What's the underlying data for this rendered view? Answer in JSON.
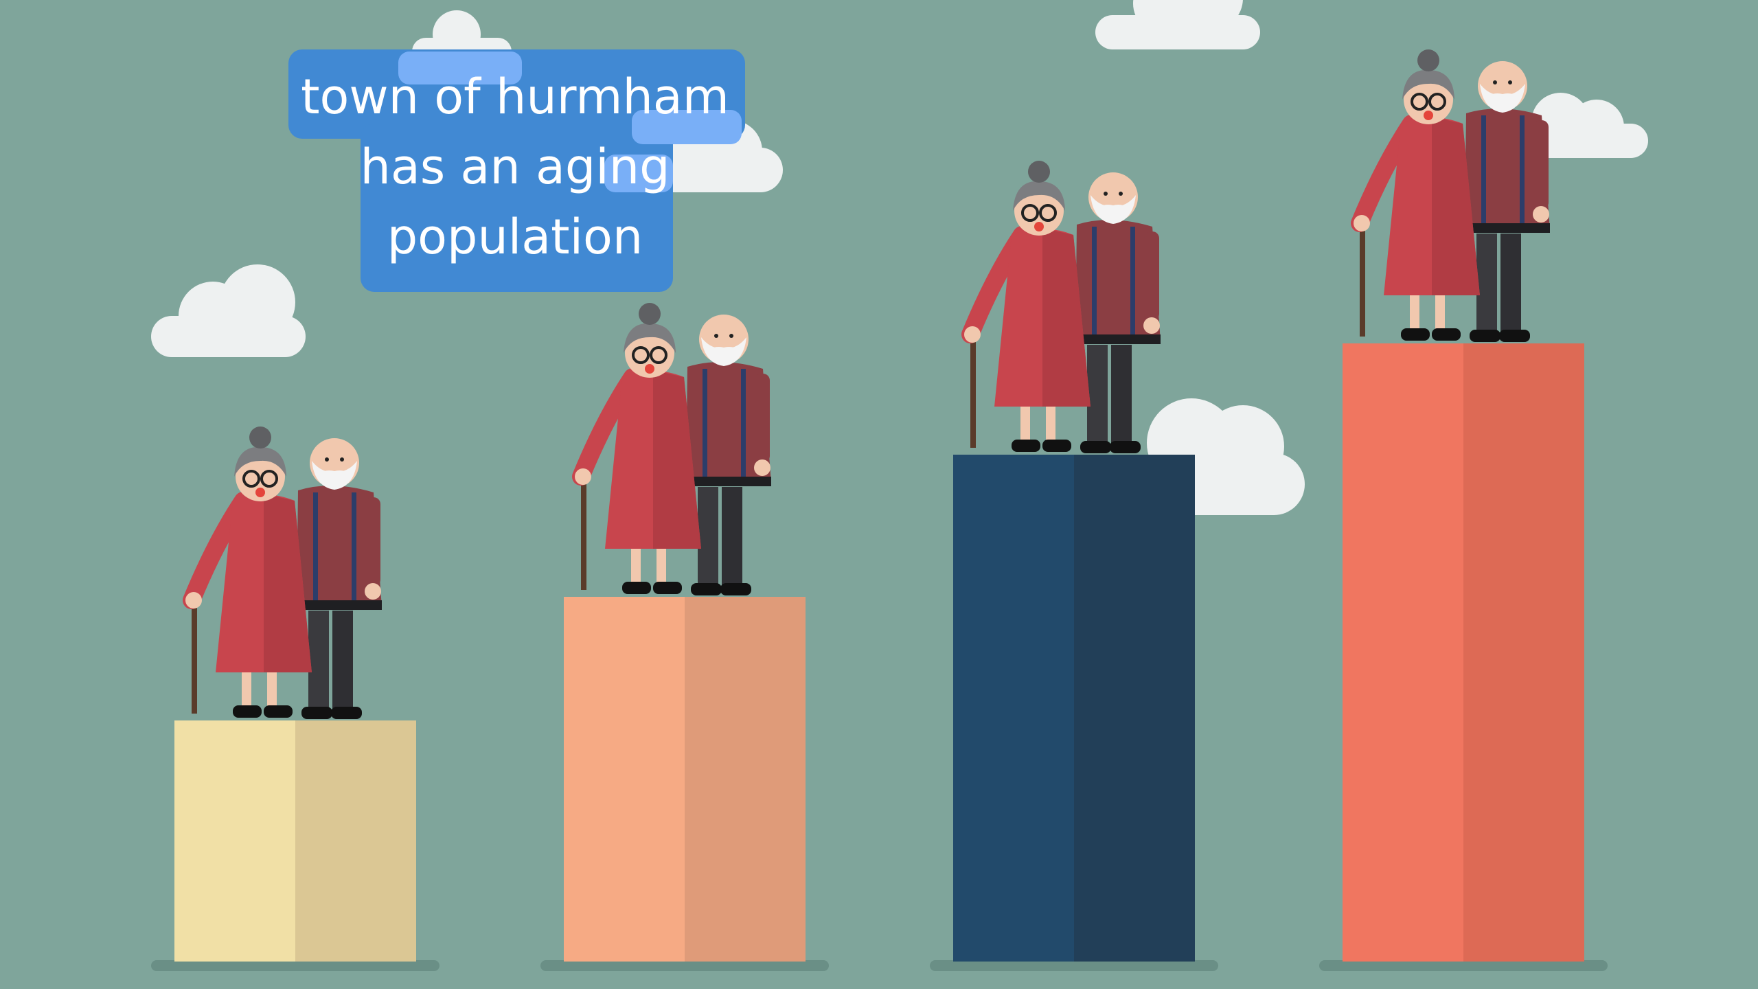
{
  "caption": {
    "lines": [
      "town of hurmham",
      "has an aging",
      "population"
    ]
  },
  "bars": [
    {
      "label_name": "bar-1",
      "level": 0.39,
      "colors": {
        "front": "#f1e0a6",
        "side": "#dbc794"
      }
    },
    {
      "label_name": "bar-2",
      "level": 0.59,
      "colors": {
        "front": "#f6aa84",
        "side": "#df9b79"
      }
    },
    {
      "label_name": "bar-3",
      "level": 0.82,
      "colors": {
        "front": "#224a6b",
        "side": "#223f58"
      }
    },
    {
      "label_name": "bar-4",
      "level": 1.0,
      "colors": {
        "front": "#f07660",
        "side": "#dd6a55"
      }
    }
  ],
  "colors": {
    "background": "#7fa59b",
    "cloud": "#eef1f1",
    "caption_bg": "#4189d3",
    "caption_highlight": "#79aff7",
    "dress": "#c8454d",
    "dress_shade": "#b13c44",
    "shirt": "#8b3e43",
    "pants": "#3a3a3e",
    "hair": "#7c7d80",
    "skin": "#f1c8ae",
    "cane": "#5a3b2a"
  }
}
